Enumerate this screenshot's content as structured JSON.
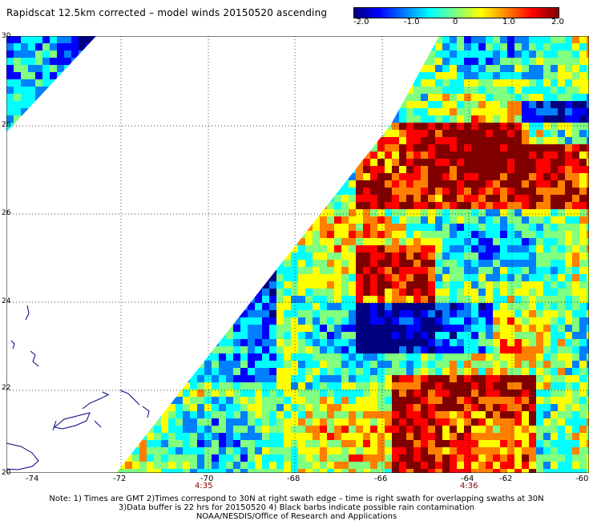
{
  "title": "Rapidscat 12.5km corrected – model winds 20150520 ascending",
  "colorbar": {
    "ticks": [
      "-2.0",
      "-1.0",
      "0",
      "1.0",
      "2.0"
    ],
    "colors": [
      "#000080",
      "#0000ff",
      "#0080ff",
      "#00ffff",
      "#80ff80",
      "#ffff00",
      "#ff8000",
      "#ff0000",
      "#800000"
    ]
  },
  "lat_labels": [
    "30",
    "28",
    "26",
    "24",
    "22",
    "20"
  ],
  "lon_labels": [
    "-74",
    "-72",
    "-70",
    "-68",
    "-66",
    "-64",
    "-62",
    "-60"
  ],
  "time_labels": [
    "4:35",
    "4:36"
  ],
  "notes": [
    "Note: 1) Times are GMT 2)Times correspond to 30N at right swath edge – time is right swath for overlapping swaths at 30N",
    "3)Data buffer is 22 hrs for 20150520 4) Black barbs indicate possible rain contamination",
    "NOAA/NESDIS/Office of Research and Applications"
  ]
}
